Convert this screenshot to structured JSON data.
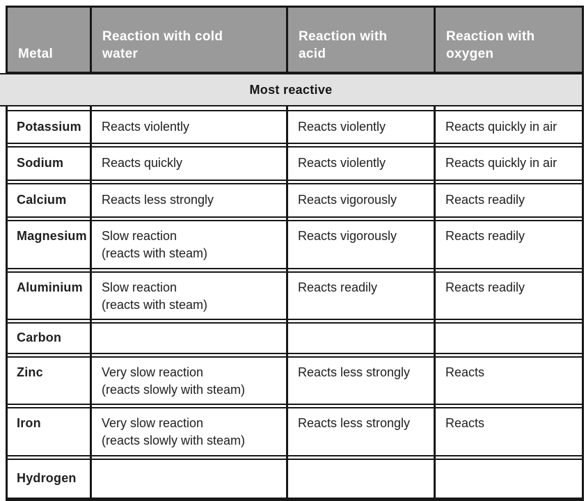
{
  "table": {
    "columns": [
      "Metal",
      "Reaction with cold\nwater",
      "Reaction with\nacid",
      "Reaction with\noxygen"
    ],
    "banner": "Most reactive",
    "rows": [
      {
        "metal": "Potassium",
        "cold_water": "Reacts violently",
        "acid": "Reacts violently",
        "oxygen": "Reacts quickly in air"
      },
      {
        "metal": "Sodium",
        "cold_water": "Reacts quickly",
        "acid": "Reacts violently",
        "oxygen": "Reacts quickly in air"
      },
      {
        "metal": "Calcium",
        "cold_water": "Reacts less strongly",
        "acid": "Reacts vigorously",
        "oxygen": "Reacts readily"
      },
      {
        "metal": "Magnesium",
        "cold_water": "Slow reaction\n(reacts with steam)",
        "acid": "Reacts vigorously",
        "oxygen": "Reacts readily"
      },
      {
        "metal": "Aluminium",
        "cold_water": "Slow reaction\n(reacts with steam)",
        "acid": "Reacts readily",
        "oxygen": "Reacts readily"
      },
      {
        "metal": "Carbon",
        "cold_water": "",
        "acid": "",
        "oxygen": ""
      },
      {
        "metal": "Zinc",
        "cold_water": "Very slow reaction\n(reacts slowly with steam)",
        "acid": "Reacts less strongly",
        "oxygen": "Reacts"
      },
      {
        "metal": "Iron",
        "cold_water": "Very slow reaction\n(reacts slowly with steam)",
        "acid": "Reacts less strongly",
        "oxygen": "Reacts"
      },
      {
        "metal": "Hydrogen",
        "cold_water": "",
        "acid": "",
        "oxygen": ""
      }
    ],
    "colors": {
      "header_bg": "#999a99",
      "header_text": "#ffffff",
      "banner_bg": "#e2e2e2",
      "border": "#171717",
      "cell_bg": "#ffffff",
      "text": "#202020"
    }
  }
}
